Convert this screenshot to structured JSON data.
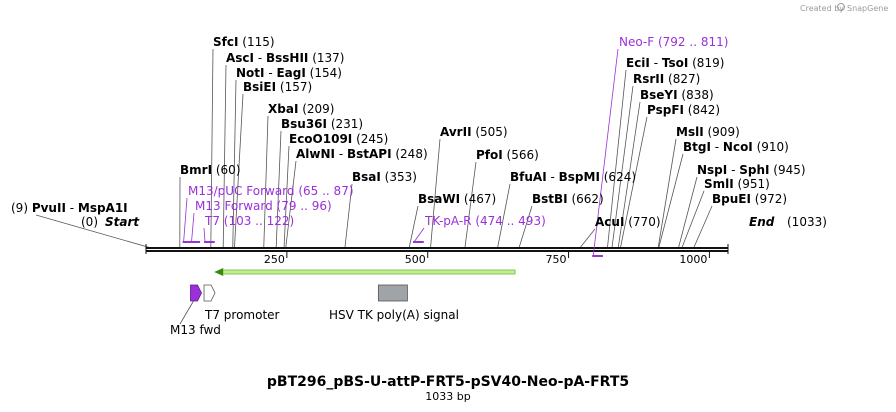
{
  "brand": {
    "created_by": "Created by",
    "name": "SnapGene"
  },
  "map": {
    "length": 1033,
    "title": "pBT296_pBS-U-attP-FRT5-pSV40-Neo-pA-FRT5",
    "subtitle": "1033 bp",
    "ticks": [
      250,
      500,
      750,
      1000
    ],
    "ends": {
      "start_label": "Start",
      "start_pos": "(0)",
      "end_label": "End",
      "end_pos": "(1033)"
    },
    "sites": [
      {
        "name": "PvuII",
        "name2": "MspA1I",
        "pos": "(9)",
        "bp": 9
      },
      {
        "name": "BmrI",
        "pos": "(60)",
        "bp": 60
      },
      {
        "name": "SfcI",
        "pos": "(115)",
        "bp": 115
      },
      {
        "name": "AscI",
        "name2": "BssHII",
        "pos": "(137)",
        "bp": 137
      },
      {
        "name": "NotI",
        "name2": "EagI",
        "pos": "(154)",
        "bp": 154
      },
      {
        "name": "BsiEI",
        "pos": "(157)",
        "bp": 157
      },
      {
        "name": "XbaI",
        "pos": "(209)",
        "bp": 209
      },
      {
        "name": "Bsu36I",
        "pos": "(231)",
        "bp": 231
      },
      {
        "name": "EcoO109I",
        "pos": "(245)",
        "bp": 245
      },
      {
        "name": "AlwNI",
        "name2": "BstAPI",
        "pos": "(248)",
        "bp": 248
      },
      {
        "name": "BsaI",
        "pos": "(353)",
        "bp": 353
      },
      {
        "name": "BsaWI",
        "pos": "(467)",
        "bp": 467
      },
      {
        "name": "AvrII",
        "pos": "(505)",
        "bp": 505
      },
      {
        "name": "PfoI",
        "pos": "(566)",
        "bp": 566
      },
      {
        "name": "BfuAI",
        "name2": "BspMI",
        "pos": "(624)",
        "bp": 624
      },
      {
        "name": "BstBI",
        "pos": "(662)",
        "bp": 662
      },
      {
        "name": "AcuI",
        "pos": "(770)",
        "bp": 770
      },
      {
        "name": "EciI",
        "name2": "TsoI",
        "pos": "(819)",
        "bp": 819
      },
      {
        "name": "RsrII",
        "pos": "(827)",
        "bp": 827
      },
      {
        "name": "BseYI",
        "pos": "(838)",
        "bp": 838
      },
      {
        "name": "PspFI",
        "pos": "(842)",
        "bp": 842
      },
      {
        "name": "MslI",
        "pos": "(909)",
        "bp": 909
      },
      {
        "name": "BtgI",
        "name2": "NcoI",
        "pos": "(910)",
        "bp": 910
      },
      {
        "name": "NspI",
        "name2": "SphI",
        "pos": "(945)",
        "bp": 945
      },
      {
        "name": "SmlI",
        "pos": "(951)",
        "bp": 951
      },
      {
        "name": "BpuEI",
        "pos": "(972)",
        "bp": 972
      }
    ],
    "primers": [
      {
        "name": "Neo-F",
        "range": "(792 .. 811)",
        "start": 792,
        "end": 811,
        "strand": "bottom"
      },
      {
        "name": "M13/pUC Forward",
        "range": "(65 .. 87)",
        "start": 65,
        "end": 87,
        "strand": "top"
      },
      {
        "name": "M13 Forward",
        "range": "(79 .. 96)",
        "start": 79,
        "end": 96,
        "strand": "top"
      },
      {
        "name": "T7",
        "range": "(103 .. 122)",
        "start": 103,
        "end": 122,
        "strand": "top"
      },
      {
        "name": "TK-pA-R",
        "range": "(474 .. 493)",
        "start": 474,
        "end": 493,
        "strand": "top"
      }
    ],
    "orf": {
      "start": 121,
      "end": 655,
      "direction": "reverse",
      "color": "#c4ec9a"
    },
    "features": [
      {
        "name": "M13 fwd",
        "start": 79,
        "end": 96,
        "color": "#9b30d9",
        "kind": "arrow"
      },
      {
        "name": "T7 promoter",
        "start": 103,
        "end": 122,
        "color": "#ffffff",
        "kind": "arrow"
      },
      {
        "name": "HSV TK poly(A) signal",
        "start": 400,
        "end": 480,
        "color": "#a0a4a8",
        "kind": "box"
      }
    ]
  }
}
